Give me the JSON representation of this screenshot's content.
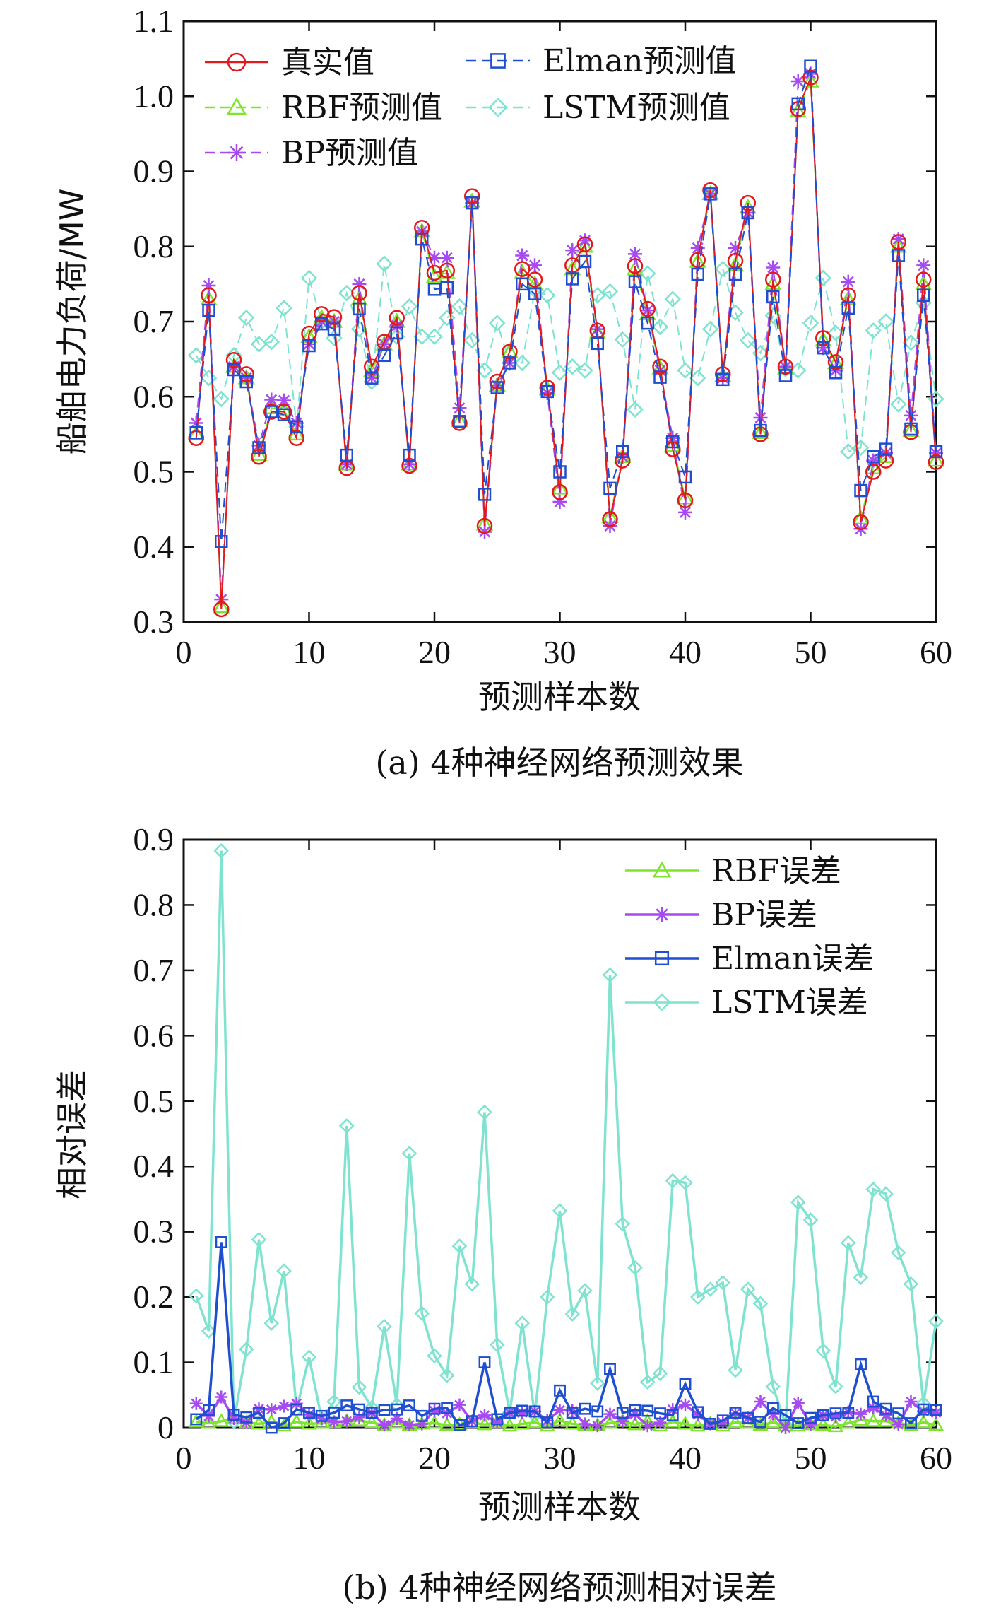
{
  "colors": {
    "true": "#e31a1c",
    "rbf": "#7ee52c",
    "bp": "#a64bf0",
    "elman": "#1f4fd0",
    "lstm": "#7fe3d0",
    "axis": "#111111"
  },
  "chart_data": [
    {
      "type": "line",
      "title": "(a) 4种神经网络预测效果",
      "xlabel": "预测样本数",
      "ylabel": "船舶电力负荷/MW",
      "xlim": [
        0,
        60
      ],
      "ylim": [
        0.3,
        1.1
      ],
      "xticks": [
        "0",
        "10",
        "20",
        "30",
        "40",
        "50",
        "60"
      ],
      "yticks": [
        "0.3",
        "0.4",
        "0.5",
        "0.6",
        "0.7",
        "0.8",
        "0.9",
        "1.0",
        "1.1"
      ],
      "x": [
        1,
        2,
        3,
        4,
        5,
        6,
        7,
        8,
        9,
        10,
        11,
        12,
        13,
        14,
        15,
        16,
        17,
        18,
        19,
        20,
        21,
        22,
        23,
        24,
        25,
        26,
        27,
        28,
        29,
        30,
        31,
        32,
        33,
        34,
        35,
        36,
        37,
        38,
        39,
        40,
        41,
        42,
        43,
        44,
        45,
        46,
        47,
        48,
        49,
        50,
        51,
        52,
        53,
        54,
        55,
        56,
        57,
        58,
        59,
        60
      ],
      "series": [
        {
          "name": "真实值",
          "key": "true",
          "marker": "circle",
          "values": [
            0.545,
            0.735,
            0.317,
            0.649,
            0.63,
            0.52,
            0.58,
            0.58,
            0.545,
            0.684,
            0.71,
            0.706,
            0.505,
            0.738,
            0.64,
            0.673,
            0.705,
            0.508,
            0.825,
            0.765,
            0.768,
            0.565,
            0.867,
            0.428,
            0.62,
            0.66,
            0.77,
            0.756,
            0.612,
            0.473,
            0.775,
            0.803,
            0.688,
            0.437,
            0.515,
            0.774,
            0.717,
            0.64,
            0.53,
            0.462,
            0.782,
            0.875,
            0.63,
            0.781,
            0.858,
            0.55,
            0.756,
            0.64,
            0.983,
            1.025,
            0.678,
            0.646,
            0.735,
            0.433,
            0.5,
            0.515,
            0.806,
            0.553,
            0.756,
            0.513
          ]
        },
        {
          "name": "RBF预测值",
          "key": "rbf",
          "marker": "triangle",
          "values": [
            0.55,
            0.73,
            0.32,
            0.64,
            0.625,
            0.523,
            0.585,
            0.582,
            0.55,
            0.68,
            0.705,
            0.7,
            0.51,
            0.73,
            0.635,
            0.67,
            0.7,
            0.51,
            0.82,
            0.76,
            0.765,
            0.568,
            0.86,
            0.43,
            0.615,
            0.66,
            0.765,
            0.75,
            0.61,
            0.478,
            0.77,
            0.8,
            0.685,
            0.44,
            0.52,
            0.77,
            0.71,
            0.638,
            0.535,
            0.465,
            0.78,
            0.87,
            0.628,
            0.775,
            0.852,
            0.552,
            0.75,
            0.638,
            0.98,
            1.02,
            0.675,
            0.645,
            0.73,
            0.438,
            0.505,
            0.52,
            0.8,
            0.555,
            0.75,
            0.515
          ]
        },
        {
          "name": "BP预测值",
          "key": "bp",
          "marker": "star",
          "values": [
            0.565,
            0.748,
            0.33,
            0.64,
            0.625,
            0.535,
            0.596,
            0.595,
            0.565,
            0.67,
            0.7,
            0.7,
            0.51,
            0.75,
            0.625,
            0.67,
            0.695,
            0.51,
            0.82,
            0.785,
            0.785,
            0.585,
            0.858,
            0.42,
            0.615,
            0.645,
            0.788,
            0.775,
            0.605,
            0.46,
            0.795,
            0.808,
            0.69,
            0.428,
            0.52,
            0.79,
            0.715,
            0.635,
            0.545,
            0.446,
            0.798,
            0.87,
            0.625,
            0.798,
            0.845,
            0.572,
            0.772,
            0.64,
            1.02,
            1.03,
            0.665,
            0.635,
            0.753,
            0.424,
            0.515,
            0.525,
            0.81,
            0.575,
            0.775,
            0.525
          ]
        },
        {
          "name": "Elman预测值",
          "key": "elman",
          "marker": "square",
          "values": [
            0.552,
            0.715,
            0.407,
            0.636,
            0.62,
            0.532,
            0.58,
            0.576,
            0.56,
            0.668,
            0.697,
            0.69,
            0.522,
            0.717,
            0.625,
            0.655,
            0.685,
            0.522,
            0.81,
            0.743,
            0.745,
            0.567,
            0.858,
            0.47,
            0.612,
            0.645,
            0.75,
            0.737,
            0.607,
            0.5,
            0.757,
            0.78,
            0.671,
            0.478,
            0.527,
            0.753,
            0.698,
            0.626,
            0.54,
            0.493,
            0.763,
            0.87,
            0.623,
            0.763,
            0.845,
            0.555,
            0.733,
            0.628,
            0.99,
            1.04,
            0.665,
            0.632,
            0.718,
            0.475,
            0.52,
            0.53,
            0.788,
            0.557,
            0.735,
            0.527
          ]
        },
        {
          "name": "LSTM预测值",
          "key": "lstm",
          "marker": "diamond",
          "values": [
            0.655,
            0.625,
            0.597,
            0.655,
            0.705,
            0.67,
            0.673,
            0.718,
            0.56,
            0.758,
            0.7,
            0.678,
            0.738,
            0.69,
            0.62,
            0.777,
            0.68,
            0.72,
            0.68,
            0.68,
            0.705,
            0.72,
            0.675,
            0.635,
            0.698,
            0.645,
            0.645,
            0.742,
            0.735,
            0.632,
            0.64,
            0.635,
            0.735,
            0.74,
            0.676,
            0.583,
            0.764,
            0.693,
            0.73,
            0.635,
            0.625,
            0.69,
            0.77,
            0.712,
            0.675,
            0.658,
            0.708,
            0.637,
            0.635,
            0.698,
            0.758,
            0.685,
            0.527,
            0.532,
            0.688,
            0.7,
            0.59,
            0.672,
            0.725,
            0.597
          ]
        }
      ]
    },
    {
      "type": "line",
      "title": "(b) 4种神经网络预测相对误差",
      "xlabel": "预测样本数",
      "ylabel": "相对误差",
      "xlim": [
        0,
        60
      ],
      "ylim": [
        0,
        0.9
      ],
      "xticks": [
        "0",
        "10",
        "20",
        "30",
        "40",
        "50",
        "60"
      ],
      "yticks": [
        "0",
        "0.1",
        "0.2",
        "0.3",
        "0.4",
        "0.5",
        "0.6",
        "0.7",
        "0.8",
        "0.9"
      ],
      "x": [
        1,
        2,
        3,
        4,
        5,
        6,
        7,
        8,
        9,
        10,
        11,
        12,
        13,
        14,
        15,
        16,
        17,
        18,
        19,
        20,
        21,
        22,
        23,
        24,
        25,
        26,
        27,
        28,
        29,
        30,
        31,
        32,
        33,
        34,
        35,
        36,
        37,
        38,
        39,
        40,
        41,
        42,
        43,
        44,
        45,
        46,
        47,
        48,
        49,
        50,
        51,
        52,
        53,
        54,
        55,
        56,
        57,
        58,
        59,
        60
      ],
      "series": [
        {
          "name": "RBF误差",
          "key": "rbf",
          "marker": "triangle",
          "values": [
            0.009,
            0.007,
            0.01,
            0.014,
            0.008,
            0.006,
            0.009,
            0.003,
            0.009,
            0.006,
            0.007,
            0.008,
            0.01,
            0.011,
            0.008,
            0.004,
            0.007,
            0.004,
            0.006,
            0.007,
            0.004,
            0.005,
            0.008,
            0.005,
            0.008,
            0.003,
            0.006,
            0.008,
            0.003,
            0.011,
            0.006,
            0.004,
            0.004,
            0.007,
            0.01,
            0.005,
            0.01,
            0.003,
            0.009,
            0.006,
            0.003,
            0.006,
            0.003,
            0.008,
            0.007,
            0.004,
            0.008,
            0.003,
            0.003,
            0.005,
            0.004,
            0.002,
            0.007,
            0.012,
            0.01,
            0.01,
            0.007,
            0.004,
            0.008,
            0.004
          ]
        },
        {
          "name": "BP误差",
          "key": "bp",
          "marker": "star",
          "values": [
            0.037,
            0.018,
            0.047,
            0.014,
            0.008,
            0.029,
            0.028,
            0.033,
            0.037,
            0.02,
            0.014,
            0.009,
            0.01,
            0.016,
            0.023,
            0.004,
            0.014,
            0.004,
            0.006,
            0.026,
            0.022,
            0.035,
            0.01,
            0.019,
            0.008,
            0.023,
            0.023,
            0.025,
            0.011,
            0.027,
            0.026,
            0.006,
            0.003,
            0.021,
            0.01,
            0.021,
            0.003,
            0.008,
            0.028,
            0.035,
            0.02,
            0.006,
            0.008,
            0.022,
            0.015,
            0.04,
            0.021,
            0.0,
            0.038,
            0.005,
            0.019,
            0.017,
            0.024,
            0.021,
            0.03,
            0.019,
            0.005,
            0.04,
            0.025,
            0.023
          ]
        },
        {
          "name": "Elman误差",
          "key": "elman",
          "marker": "square",
          "values": [
            0.013,
            0.027,
            0.284,
            0.02,
            0.016,
            0.023,
            0.0,
            0.007,
            0.028,
            0.023,
            0.018,
            0.023,
            0.034,
            0.028,
            0.023,
            0.027,
            0.028,
            0.034,
            0.018,
            0.029,
            0.03,
            0.004,
            0.01,
            0.1,
            0.013,
            0.023,
            0.026,
            0.025,
            0.008,
            0.057,
            0.023,
            0.029,
            0.025,
            0.09,
            0.023,
            0.027,
            0.026,
            0.022,
            0.019,
            0.067,
            0.024,
            0.006,
            0.011,
            0.023,
            0.015,
            0.009,
            0.03,
            0.019,
            0.007,
            0.015,
            0.019,
            0.022,
            0.023,
            0.097,
            0.04,
            0.029,
            0.022,
            0.007,
            0.028,
            0.027
          ]
        },
        {
          "name": "LSTM误差",
          "key": "lstm",
          "marker": "diamond",
          "values": [
            0.202,
            0.148,
            0.883,
            0.009,
            0.12,
            0.288,
            0.16,
            0.24,
            0.028,
            0.108,
            0.014,
            0.04,
            0.462,
            0.062,
            0.031,
            0.155,
            0.035,
            0.42,
            0.175,
            0.11,
            0.08,
            0.278,
            0.22,
            0.483,
            0.127,
            0.023,
            0.16,
            0.019,
            0.2,
            0.332,
            0.174,
            0.21,
            0.068,
            0.693,
            0.312,
            0.245,
            0.07,
            0.083,
            0.378,
            0.375,
            0.2,
            0.212,
            0.222,
            0.088,
            0.212,
            0.19,
            0.063,
            0.005,
            0.345,
            0.318,
            0.118,
            0.063,
            0.283,
            0.23,
            0.365,
            0.358,
            0.268,
            0.22,
            0.037,
            0.163
          ]
        }
      ]
    }
  ]
}
